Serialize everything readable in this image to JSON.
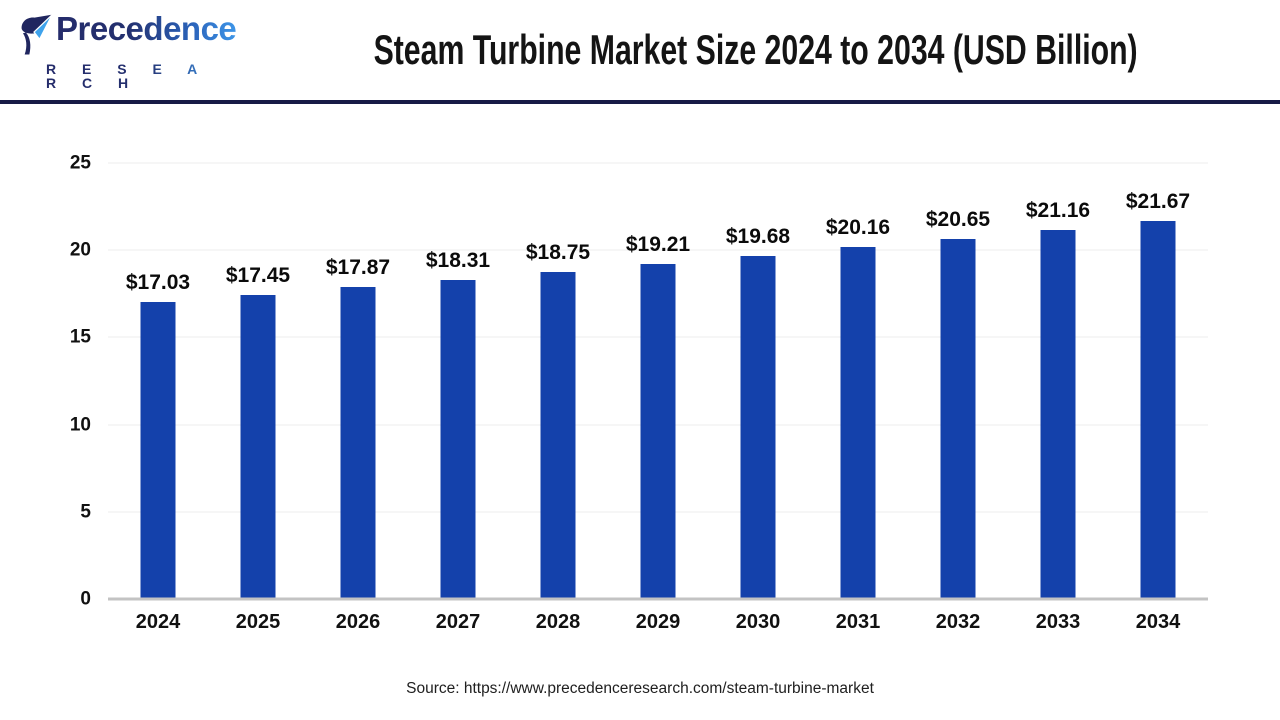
{
  "header": {
    "logo": {
      "brand": "Precedence",
      "brand_sub": "R E S E A R C H"
    },
    "title": "Steam Turbine Market Size 2024 to 2034 (USD Billion)"
  },
  "chart_data": {
    "type": "bar",
    "title": "Steam Turbine Market Size 2024 to 2034 (USD Billion)",
    "unit": "USD Billion",
    "categories": [
      "2024",
      "2025",
      "2026",
      "2027",
      "2028",
      "2029",
      "2030",
      "2031",
      "2032",
      "2033",
      "2034"
    ],
    "values": [
      17.03,
      17.45,
      17.87,
      18.31,
      18.75,
      19.21,
      19.68,
      20.16,
      20.65,
      21.16,
      21.67
    ],
    "labels": [
      "$17.03",
      "$17.45",
      "$17.87",
      "$18.31",
      "$18.75",
      "$19.21",
      "$19.68",
      "$20.16",
      "$20.65",
      "$21.16",
      "$21.67"
    ],
    "xlabel": "",
    "ylabel": "",
    "yticks": [
      0,
      5,
      10,
      15,
      20,
      25
    ],
    "ylim": [
      0,
      25
    ],
    "grid": true,
    "legend_position": "none",
    "bar_color": "#1441AB"
  },
  "footer": {
    "source": "Source: https://www.precedenceresearch.com/steam-turbine-market"
  },
  "colors": {
    "bar": "#1441AB",
    "header_rule": "#171B46",
    "gridline": "#ececec",
    "baseline": "#c3c3c3",
    "logo_dark": "#20265F",
    "logo_light_blue": "#3FA3EC"
  }
}
